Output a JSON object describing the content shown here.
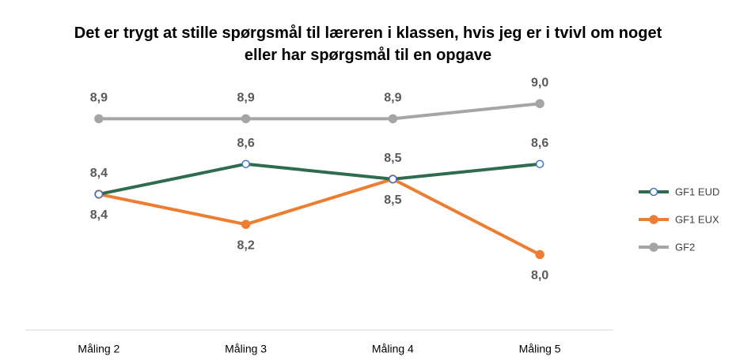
{
  "chart_data": {
    "type": "line",
    "title": "Det er trygt at stille spørgsmål til læreren i klassen, hvis jeg er i tvivl om noget eller har spørgsmål til en opgave",
    "categories": [
      "Måling 2",
      "Måling 3",
      "Måling 4",
      "Måling 5"
    ],
    "ylim": [
      7.5,
      9.2
    ],
    "series": [
      {
        "name": "GF1 EUD",
        "color": "#2e6b4f",
        "marker_color": "#4472c4",
        "marker_fill": "#ffffff",
        "label_position": "above",
        "values": [
          8.4,
          8.6,
          8.5,
          8.6
        ],
        "value_labels": [
          "8,4",
          "8,6",
          "8,5",
          "8,6"
        ]
      },
      {
        "name": "GF1 EUX",
        "color": "#ed7d31",
        "label_position": "below",
        "values": [
          8.4,
          8.2,
          8.5,
          8.0
        ],
        "value_labels": [
          "8,4",
          "8,2",
          "8,5",
          "8,0"
        ]
      },
      {
        "name": "GF2",
        "color": "#a5a5a5",
        "label_position": "above",
        "values": [
          8.9,
          8.9,
          8.9,
          9.0
        ],
        "value_labels": [
          "8,9",
          "8,9",
          "8,9",
          "9,0"
        ]
      }
    ],
    "legend": "right"
  }
}
